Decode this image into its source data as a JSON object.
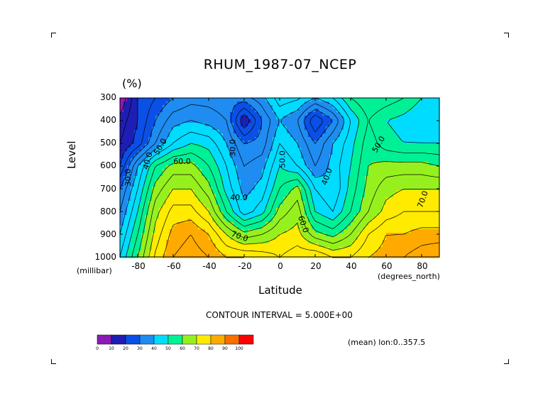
{
  "chart_data": {
    "type": "heatmap",
    "title": "RHUM_1987-07_NCEP",
    "units": "(%)",
    "xlabel": "Latitude",
    "xunits": "(degrees_north)",
    "ylabel": "Level",
    "yunits": "(millibar)",
    "x_ticks": [
      -80,
      -60,
      -40,
      -20,
      0,
      20,
      40,
      60,
      80
    ],
    "y_ticks": [
      300,
      400,
      500,
      600,
      700,
      800,
      900,
      1000
    ],
    "xlim": [
      -90,
      90
    ],
    "ylim": [
      1000,
      300
    ],
    "lat": [
      -90,
      -80,
      -70,
      -60,
      -50,
      -40,
      -30,
      -20,
      -10,
      0,
      10,
      20,
      30,
      40,
      50,
      60,
      70,
      80,
      90
    ],
    "levels": [
      300,
      400,
      500,
      600,
      700,
      800,
      900,
      1000
    ],
    "values": [
      [
        5,
        20,
        25,
        30,
        33,
        33,
        32,
        33,
        38,
        48,
        46,
        40,
        45,
        55,
        60,
        58,
        55,
        50,
        45
      ],
      [
        12,
        20,
        30,
        38,
        40,
        38,
        35,
        15,
        30,
        40,
        35,
        20,
        30,
        45,
        55,
        50,
        48,
        45,
        45
      ],
      [
        15,
        22,
        35,
        45,
        50,
        48,
        40,
        30,
        32,
        45,
        40,
        30,
        40,
        48,
        58,
        52,
        50,
        50,
        50
      ],
      [
        20,
        40,
        55,
        62,
        62,
        55,
        45,
        35,
        38,
        50,
        45,
        35,
        42,
        50,
        60,
        62,
        62,
        62,
        60
      ],
      [
        30,
        45,
        62,
        70,
        70,
        62,
        48,
        38,
        42,
        55,
        62,
        45,
        40,
        52,
        62,
        68,
        70,
        70,
        70
      ],
      [
        35,
        50,
        68,
        77,
        77,
        70,
        55,
        42,
        48,
        62,
        68,
        50,
        45,
        55,
        65,
        72,
        75,
        75,
        75
      ],
      [
        40,
        55,
        72,
        82,
        85,
        80,
        70,
        62,
        65,
        70,
        72,
        62,
        58,
        65,
        75,
        80,
        80,
        82,
        82
      ],
      [
        45,
        60,
        76,
        85,
        88,
        85,
        80,
        80,
        78,
        75,
        78,
        80,
        75,
        75,
        80,
        82,
        85,
        88,
        90
      ]
    ],
    "contour_interval_label": "CONTOUR INTERVAL = 5.000E+00",
    "contour_labels": [
      "30.0",
      "40.0",
      "50.0",
      "60.0",
      "30.0",
      "40.0",
      "50.0",
      "40.0",
      "50.0",
      "60.0",
      "70.0",
      "70.0"
    ],
    "colorbar": {
      "labels": [
        "0",
        "10",
        "20",
        "30",
        "40",
        "50",
        "60",
        "70",
        "80",
        "90",
        "100"
      ],
      "colors": [
        "#8c1ab4",
        "#1e1eb4",
        "#0a50e6",
        "#1e8cf0",
        "#00dcff",
        "#00f096",
        "#96f01e",
        "#ffeb00",
        "#ffaa00",
        "#ff6e00",
        "#ff0000"
      ]
    },
    "mean_lon_label": "(mean) lon:0..357.5",
    "grid": false,
    "legend": "bottom-left colorbar"
  },
  "crop_marks": true
}
